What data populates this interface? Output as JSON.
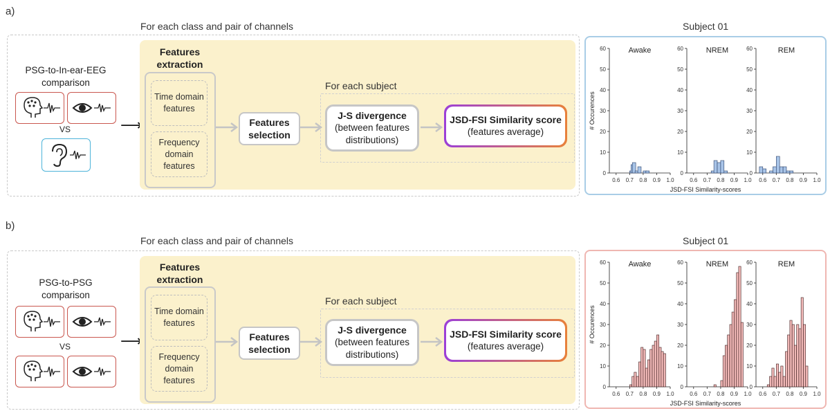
{
  "panels": [
    {
      "label": "a)",
      "loop_caption": "For each class and pair of channels",
      "comparison_title": "PSG-to-In-ear-EEG comparison",
      "vs": "VS",
      "top_icons": [
        "head-eeg-icon",
        "eye-icon"
      ],
      "bottom_icons": [
        "ear-icon"
      ],
      "feature_extraction_title": "Features extraction",
      "time_domain": "Time domain features",
      "frequency_domain": "Frequency domain features",
      "selection": "Features selection",
      "subject_caption": "For each subject",
      "js_title": "J-S divergence",
      "js_sub": "(between features distributions)",
      "score_title": "JSD-FSI Similarity score",
      "score_sub": "(features average)",
      "chart_title": "Subject 01",
      "frame_color": "#a9cde6"
    },
    {
      "label": "b)",
      "loop_caption": "For each class and pair of channels",
      "comparison_title": "PSG-to-PSG comparison",
      "vs": "VS",
      "top_icons": [
        "head-eeg-icon",
        "eye-icon"
      ],
      "bottom_icons": [
        "head-eeg-icon",
        "eye-icon"
      ],
      "feature_extraction_title": "Features extraction",
      "time_domain": "Time domain features",
      "frequency_domain": "Frequency domain features",
      "selection": "Features selection",
      "subject_caption": "For each subject",
      "js_title": "J-S divergence",
      "js_sub": "(between features distributions)",
      "score_title": "JSD-FSI Similarity score",
      "score_sub": "(features average)",
      "chart_title": "Subject 01",
      "frame_color": "#efb6b1"
    }
  ],
  "chart_data": [
    {
      "type": "histogram",
      "title": "Subject 01",
      "xlabel": "JSD-FSI Similarity-scores",
      "ylabel": "# Occurences",
      "ylim": [
        0,
        60
      ],
      "xlim": [
        0.55,
        1.0
      ],
      "xticks": [
        "0.6",
        "0.7",
        "0.8",
        "0.9",
        "1.0"
      ],
      "yticks": [
        "0",
        "10",
        "20",
        "30",
        "40",
        "50",
        "60"
      ],
      "bar_color": "#a8c4e8",
      "edge_color": "#2a3f66",
      "bin_width": 0.025,
      "series": [
        {
          "name": "Awake",
          "bins": [
            [
              0.7,
              1
            ],
            [
              0.71,
              4
            ],
            [
              0.72,
              5
            ],
            [
              0.74,
              1
            ],
            [
              0.76,
              3
            ],
            [
              0.8,
              1
            ],
            [
              0.82,
              1
            ]
          ]
        },
        {
          "name": "NREM",
          "bins": [
            [
              0.73,
              1
            ],
            [
              0.75,
              6
            ],
            [
              0.775,
              5
            ],
            [
              0.8,
              6
            ],
            [
              0.825,
              1
            ]
          ]
        },
        {
          "name": "REM",
          "bins": [
            [
              0.575,
              3
            ],
            [
              0.6,
              2
            ],
            [
              0.625,
              0
            ],
            [
              0.65,
              1
            ],
            [
              0.675,
              3
            ],
            [
              0.7,
              8
            ],
            [
              0.725,
              3
            ],
            [
              0.75,
              3
            ],
            [
              0.775,
              1
            ],
            [
              0.8,
              1
            ]
          ]
        }
      ]
    },
    {
      "type": "histogram",
      "title": "Subject 01",
      "xlabel": "JSD-FSI Similarity-scores",
      "ylabel": "# Occurences",
      "ylim": [
        0,
        60
      ],
      "xlim": [
        0.55,
        1.0
      ],
      "xticks": [
        "0.6",
        "0.7",
        "0.8",
        "0.9",
        "1.0"
      ],
      "yticks": [
        "0",
        "10",
        "20",
        "30",
        "40",
        "50",
        "60"
      ],
      "bar_color": "#f2b9b8",
      "edge_color": "#3a1c1c",
      "bin_width": 0.0167,
      "series": [
        {
          "name": "Awake",
          "bins": [
            [
              0.7,
              1
            ],
            [
              0.717,
              5
            ],
            [
              0.733,
              7
            ],
            [
              0.75,
              5
            ],
            [
              0.767,
              12
            ],
            [
              0.783,
              19
            ],
            [
              0.8,
              18
            ],
            [
              0.817,
              9
            ],
            [
              0.833,
              13
            ],
            [
              0.85,
              18
            ],
            [
              0.867,
              20
            ],
            [
              0.883,
              22
            ],
            [
              0.9,
              25
            ],
            [
              0.917,
              19
            ],
            [
              0.933,
              17
            ],
            [
              0.95,
              16
            ]
          ]
        },
        {
          "name": "NREM",
          "bins": [
            [
              0.75,
              1
            ],
            [
              0.8,
              3
            ],
            [
              0.817,
              15
            ],
            [
              0.833,
              20
            ],
            [
              0.85,
              25
            ],
            [
              0.867,
              30
            ],
            [
              0.883,
              36
            ],
            [
              0.9,
              42
            ],
            [
              0.917,
              55
            ],
            [
              0.933,
              58
            ],
            [
              0.95,
              31
            ]
          ]
        },
        {
          "name": "REM",
          "bins": [
            [
              0.633,
              1
            ],
            [
              0.65,
              5
            ],
            [
              0.667,
              9
            ],
            [
              0.683,
              5
            ],
            [
              0.7,
              11
            ],
            [
              0.717,
              7
            ],
            [
              0.733,
              10
            ],
            [
              0.75,
              5
            ],
            [
              0.767,
              17
            ],
            [
              0.783,
              25
            ],
            [
              0.8,
              32
            ],
            [
              0.817,
              30
            ],
            [
              0.833,
              20
            ],
            [
              0.85,
              30
            ],
            [
              0.867,
              28
            ],
            [
              0.883,
              43
            ],
            [
              0.9,
              30
            ],
            [
              0.917,
              10
            ]
          ]
        }
      ]
    }
  ]
}
